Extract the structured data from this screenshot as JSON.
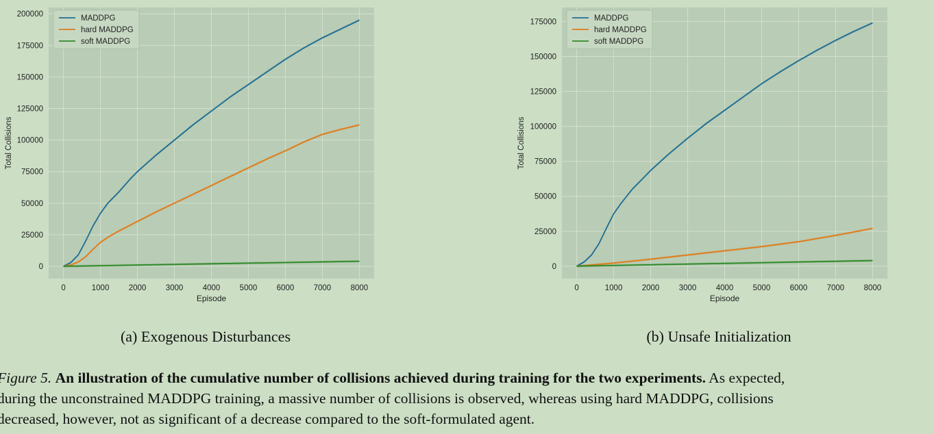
{
  "chart_data": [
    {
      "type": "line",
      "caption": "(a) Exogenous Disturbances",
      "xlabel": "Episode",
      "ylabel": "Total Collisions",
      "xlim": [
        -400,
        8400
      ],
      "ylim": [
        -9750,
        205000
      ],
      "xticks": [
        0,
        1000,
        2000,
        3000,
        4000,
        5000,
        6000,
        7000,
        8000
      ],
      "yticks": [
        0,
        25000,
        50000,
        75000,
        100000,
        125000,
        150000,
        175000,
        200000
      ],
      "grid": true,
      "legend_position": "upper-left",
      "series": [
        {
          "name": "MADDPG",
          "color": "#1f6e94",
          "x": [
            0,
            200,
            400,
            600,
            800,
            1000,
            1200,
            1500,
            1800,
            2000,
            2500,
            3000,
            3500,
            4000,
            4500,
            5000,
            5500,
            6000,
            6500,
            7000,
            7500,
            8000
          ],
          "y": [
            0,
            3000,
            9000,
            20000,
            32000,
            42000,
            50000,
            59000,
            69000,
            75000,
            88000,
            100000,
            112000,
            123000,
            134000,
            144000,
            154000,
            164000,
            173000,
            181000,
            188000,
            195000
          ]
        },
        {
          "name": "hard MADDPG",
          "color": "#e07b1a",
          "x": [
            0,
            200,
            400,
            600,
            800,
            1000,
            1200,
            1500,
            1800,
            2000,
            2500,
            3000,
            3500,
            4000,
            4500,
            5000,
            5500,
            6000,
            6500,
            7000,
            7500,
            8000
          ],
          "y": [
            0,
            1000,
            3500,
            7500,
            13500,
            19000,
            23000,
            28000,
            32500,
            35500,
            43000,
            50000,
            57000,
            64000,
            71000,
            78000,
            85000,
            91500,
            98500,
            104500,
            108500,
            112000
          ]
        },
        {
          "name": "soft MADDPG",
          "color": "#2f8a2a",
          "x": [
            0,
            1000,
            2000,
            3000,
            4000,
            5000,
            6000,
            7000,
            8000
          ],
          "y": [
            0,
            500,
            1000,
            1500,
            2000,
            2500,
            3000,
            3500,
            4000
          ]
        }
      ]
    },
    {
      "type": "line",
      "caption": "(b) Unsafe Initialization",
      "xlabel": "Episode",
      "ylabel": "Total Collisions",
      "xlim": [
        -400,
        8400
      ],
      "ylim": [
        -8900,
        185000
      ],
      "xticks": [
        0,
        1000,
        2000,
        3000,
        4000,
        5000,
        6000,
        7000,
        8000
      ],
      "yticks": [
        0,
        25000,
        50000,
        75000,
        100000,
        125000,
        150000,
        175000
      ],
      "grid": true,
      "legend_position": "upper-left",
      "series": [
        {
          "name": "MADDPG",
          "color": "#1f6e94",
          "x": [
            0,
            200,
            400,
            600,
            800,
            1000,
            1200,
            1500,
            1800,
            2000,
            2500,
            3000,
            3500,
            4000,
            4500,
            5000,
            5500,
            6000,
            6500,
            7000,
            7500,
            8000
          ],
          "y": [
            0,
            3000,
            8000,
            16000,
            27000,
            37500,
            45000,
            55000,
            63000,
            68500,
            80500,
            91500,
            102000,
            111500,
            121000,
            130500,
            139000,
            147000,
            154500,
            161500,
            168000,
            174000
          ]
        },
        {
          "name": "hard MADDPG",
          "color": "#e07b1a",
          "x": [
            0,
            1000,
            2000,
            3000,
            4000,
            5000,
            6000,
            7000,
            8000
          ],
          "y": [
            0,
            2200,
            5000,
            8000,
            11000,
            14000,
            17500,
            22000,
            27000
          ]
        },
        {
          "name": "soft MADDPG",
          "color": "#2f8a2a",
          "x": [
            0,
            1000,
            2000,
            3000,
            4000,
            5000,
            6000,
            7000,
            8000
          ],
          "y": [
            0,
            500,
            1000,
            1500,
            2000,
            2500,
            3000,
            3500,
            4000
          ]
        }
      ]
    }
  ],
  "figure_caption": {
    "label": "Figure 5.",
    "bold_text": "An illustration of the cumulative number of collisions achieved during training for the two experiments.",
    "line1_rest": "As expected,",
    "line2": "during the unconstrained MADDPG training, a massive number of collisions is observed, whereas using hard MADDPG, collisions",
    "line3": "decreased, however, not as significant of a decrease compared to the soft-formulated agent."
  }
}
